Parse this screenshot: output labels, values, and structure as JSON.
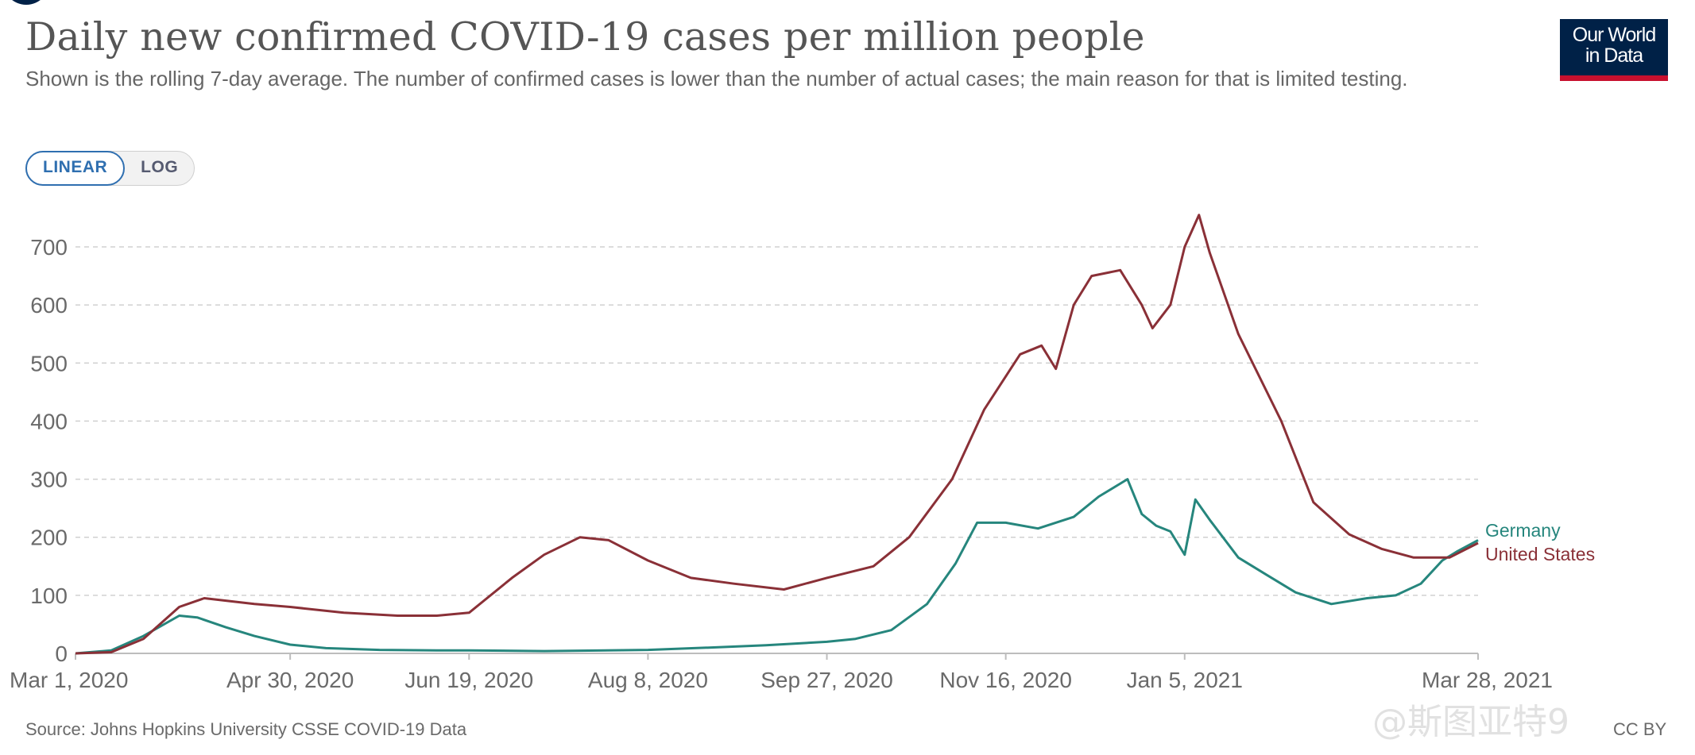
{
  "header": {
    "title": "Daily new confirmed COVID-19 cases per million people",
    "subtitle": "Shown is the rolling 7-day average. The number of confirmed cases is lower than the number of actual cases; the main reason for that is limited testing."
  },
  "logo": {
    "line1": "Our World",
    "line2": "in Data"
  },
  "scale_toggle": {
    "linear_label": "LINEAR",
    "log_label": "LOG",
    "selected": "LINEAR"
  },
  "footer": {
    "source": "Source: Johns Hopkins University CSSE COVID-19 Data",
    "license": "CC BY",
    "watermark": "@斯图亚特9"
  },
  "colors": {
    "germany": "#26867d",
    "united_states": "#8a3037",
    "grid": "#d0d0d0",
    "axis": "#bdbdbd"
  },
  "chart_data": {
    "type": "line",
    "title": "Daily new confirmed COVID-19 cases per million people",
    "xlabel": "",
    "ylabel": "",
    "ylim": [
      0,
      760
    ],
    "y_ticks": [
      0,
      100,
      200,
      300,
      400,
      500,
      600,
      700
    ],
    "x_tick_labels": [
      "Mar 1, 2020",
      "Apr 30, 2020",
      "Jun 19, 2020",
      "Aug 8, 2020",
      "Sep 27, 2020",
      "Nov 16, 2020",
      "Jan 5, 2021",
      "Mar 28, 2021"
    ],
    "x_tick_dates": [
      "2020-03-01",
      "2020-04-30",
      "2020-06-19",
      "2020-08-08",
      "2020-09-27",
      "2020-11-16",
      "2021-01-05",
      "2021-03-28"
    ],
    "x_range": [
      "2020-03-01",
      "2021-03-28"
    ],
    "grid": "horizontal dashed",
    "legend": "right end labels",
    "series": [
      {
        "name": "Germany",
        "color": "#26867d",
        "x": [
          "2020-03-01",
          "2020-03-11",
          "2020-03-20",
          "2020-03-30",
          "2020-04-04",
          "2020-04-12",
          "2020-04-20",
          "2020-04-30",
          "2020-05-10",
          "2020-05-25",
          "2020-06-10",
          "2020-06-19",
          "2020-07-10",
          "2020-08-08",
          "2020-08-25",
          "2020-09-10",
          "2020-09-27",
          "2020-10-05",
          "2020-10-15",
          "2020-10-25",
          "2020-11-02",
          "2020-11-08",
          "2020-11-16",
          "2020-11-25",
          "2020-12-05",
          "2020-12-12",
          "2020-12-20",
          "2020-12-24",
          "2020-12-28",
          "2021-01-01",
          "2021-01-05",
          "2021-01-08",
          "2021-01-12",
          "2021-01-20",
          "2021-01-28",
          "2021-02-05",
          "2021-02-15",
          "2021-02-25",
          "2021-03-05",
          "2021-03-12",
          "2021-03-18",
          "2021-03-22",
          "2021-03-28"
        ],
        "values": [
          0,
          5,
          30,
          65,
          62,
          45,
          30,
          15,
          9,
          6,
          5,
          5,
          4,
          6,
          10,
          14,
          20,
          25,
          40,
          85,
          155,
          225,
          225,
          215,
          235,
          270,
          300,
          240,
          220,
          210,
          170,
          265,
          230,
          165,
          135,
          105,
          85,
          95,
          100,
          120,
          160,
          175,
          195
        ]
      },
      {
        "name": "United States",
        "color": "#8a3037",
        "x": [
          "2020-03-01",
          "2020-03-11",
          "2020-03-20",
          "2020-03-30",
          "2020-04-06",
          "2020-04-20",
          "2020-04-30",
          "2020-05-15",
          "2020-05-30",
          "2020-06-10",
          "2020-06-19",
          "2020-07-01",
          "2020-07-10",
          "2020-07-20",
          "2020-07-28",
          "2020-08-08",
          "2020-08-20",
          "2020-09-01",
          "2020-09-15",
          "2020-09-27",
          "2020-10-10",
          "2020-10-20",
          "2020-11-01",
          "2020-11-10",
          "2020-11-20",
          "2020-11-26",
          "2020-11-30",
          "2020-12-05",
          "2020-12-10",
          "2020-12-18",
          "2020-12-24",
          "2020-12-27",
          "2021-01-01",
          "2021-01-05",
          "2021-01-09",
          "2021-01-12",
          "2021-01-20",
          "2021-02-01",
          "2021-02-10",
          "2021-02-20",
          "2021-03-01",
          "2021-03-10",
          "2021-03-20",
          "2021-03-28"
        ],
        "values": [
          0,
          2,
          25,
          80,
          95,
          85,
          80,
          70,
          65,
          65,
          70,
          130,
          170,
          200,
          195,
          160,
          130,
          120,
          110,
          130,
          150,
          200,
          300,
          420,
          515,
          530,
          490,
          600,
          650,
          660,
          600,
          560,
          600,
          700,
          755,
          690,
          550,
          400,
          260,
          205,
          180,
          165,
          165,
          190
        ]
      }
    ]
  }
}
